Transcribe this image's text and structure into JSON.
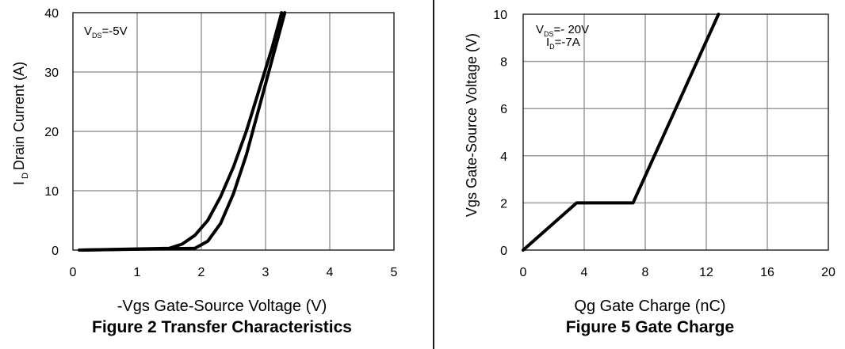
{
  "colors": {
    "grid": "#9a9a9a",
    "frame": "#2b2b2b",
    "curve": "#000000",
    "background": "#ffffff"
  },
  "chart_data": [
    {
      "type": "line",
      "title": "Figure 2 Transfer Characteristics",
      "xlabel": "-Vgs Gate-Source Voltage (V)",
      "ylabel_main": "I",
      "ylabel_sub": "D",
      "ylabel_rest": "Drain Current (A)",
      "xlim": [
        0,
        5
      ],
      "ylim": [
        0,
        40
      ],
      "xticks": [
        0,
        1,
        2,
        3,
        4,
        5
      ],
      "yticks": [
        0,
        10,
        20,
        30,
        40
      ],
      "grid": true,
      "annotations": [
        {
          "main": "V",
          "sub": "DS",
          "rest": "=-5V"
        }
      ],
      "series": [
        {
          "x": [
            0.1,
            1.5,
            1.7,
            1.9,
            2.1,
            2.3,
            2.5,
            2.7,
            2.9,
            3.1,
            3.25
          ],
          "y": [
            0,
            0.3,
            1,
            2.5,
            5,
            9,
            14,
            20,
            27,
            34,
            40
          ]
        },
        {
          "x": [
            0.1,
            1.9,
            2.1,
            2.3,
            2.5,
            2.7,
            2.9,
            3.1,
            3.3
          ],
          "y": [
            0,
            0.3,
            1.5,
            4.5,
            9.5,
            16,
            24,
            32,
            40
          ]
        }
      ]
    },
    {
      "type": "line",
      "title": "Figure 5 Gate Charge",
      "xlabel": "Qg Gate Charge (nC)",
      "ylabel": "Vgs Gate-Source Voltage (V)",
      "xlim": [
        0,
        20
      ],
      "ylim": [
        0,
        10
      ],
      "xticks": [
        0,
        4,
        8,
        12,
        16,
        20
      ],
      "yticks": [
        0,
        2,
        4,
        6,
        8,
        10
      ],
      "grid": true,
      "annotations": [
        {
          "main": "V",
          "sub": "DS",
          "rest": "=- 20V"
        },
        {
          "main": "I",
          "sub": "D",
          "rest": "=-7A"
        }
      ],
      "series": [
        {
          "x": [
            0,
            3.5,
            7.2,
            12.8
          ],
          "y": [
            0,
            2,
            2,
            10
          ]
        }
      ]
    }
  ]
}
